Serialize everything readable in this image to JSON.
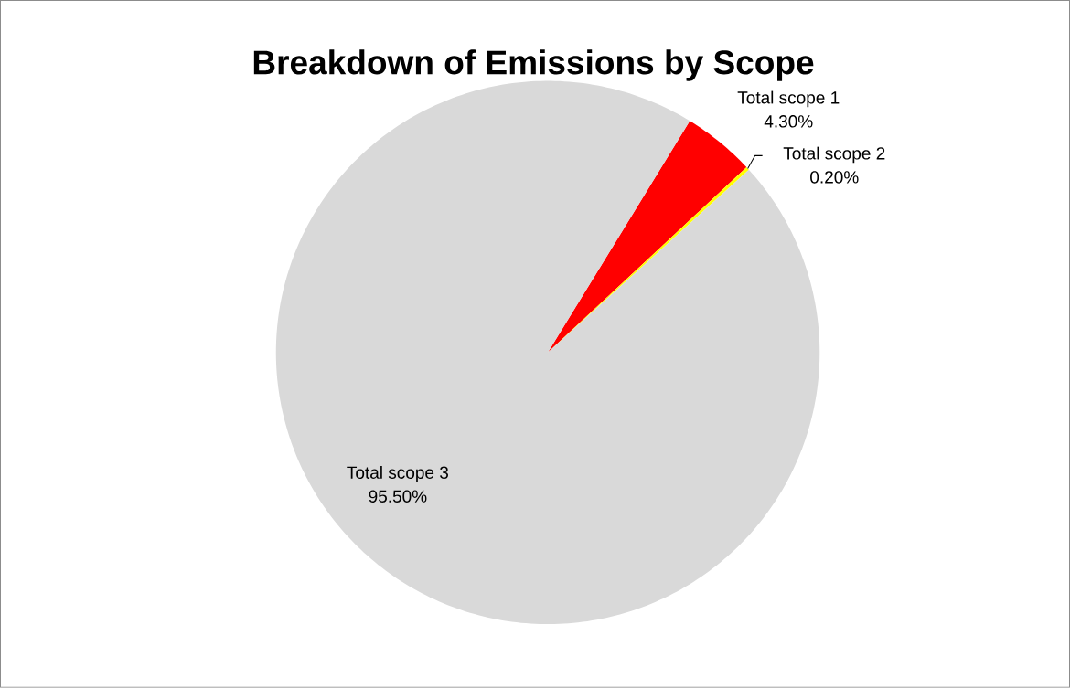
{
  "chart_data": {
    "type": "pie",
    "title": "Breakdown of Emissions by Scope",
    "categories": [
      "Total scope 1",
      "Total scope 2",
      "Total scope 3"
    ],
    "values": [
      4.3,
      0.2,
      95.5
    ],
    "colors": [
      "#ff0000",
      "#ffff00",
      "#d9d9d9"
    ],
    "value_labels": [
      "4.30%",
      "0.20%",
      "95.50%"
    ],
    "legend": false
  }
}
